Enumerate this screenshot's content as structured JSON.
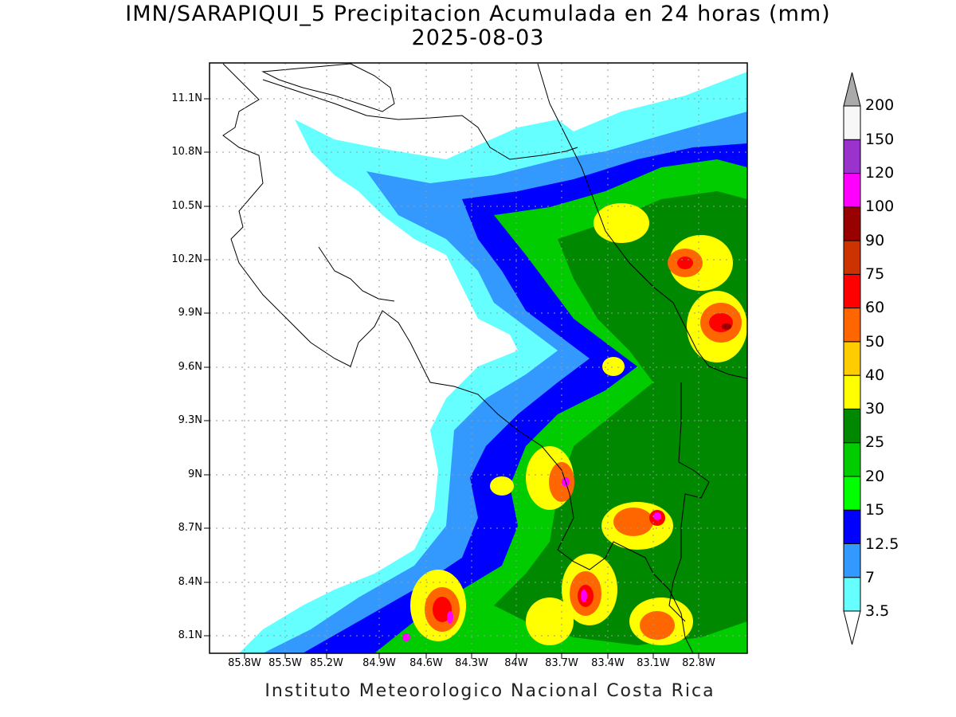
{
  "title": "IMN/SARAPIQUI_5 Precipitacion Acumulada en 24 horas (mm)",
  "subtitle": "2025-08-03",
  "footer": "Instituto Meteorologico Nacional Costa Rica",
  "y_ticks": [
    "11.1N",
    "10.8N",
    "10.5N",
    "10.2N",
    "9.9N",
    "9.6N",
    "9.3N",
    "9N",
    "8.7N",
    "8.4N",
    "8.1N"
  ],
  "x_ticks": [
    "85.8W",
    "85.5W",
    "85.2W",
    "84.9W",
    "84.6W",
    "84.3W",
    "84W",
    "83.7W",
    "83.4W",
    "83.1W",
    "82.8W"
  ],
  "colorbar": {
    "labels": [
      "3.5",
      "7",
      "12.5",
      "15",
      "20",
      "25",
      "30",
      "40",
      "50",
      "60",
      "75",
      "90",
      "100",
      "120",
      "150",
      "200"
    ],
    "colors": [
      "#ffffff",
      "#66ffff",
      "#3399ff",
      "#0000ff",
      "#00ff00",
      "#00cc00",
      "#008800",
      "#ffff00",
      "#ffcc00",
      "#ff6600",
      "#ff0000",
      "#cc3300",
      "#990000",
      "#ff00ff",
      "#9933cc",
      "#f7f7f7",
      "#aaaaaa"
    ]
  }
}
